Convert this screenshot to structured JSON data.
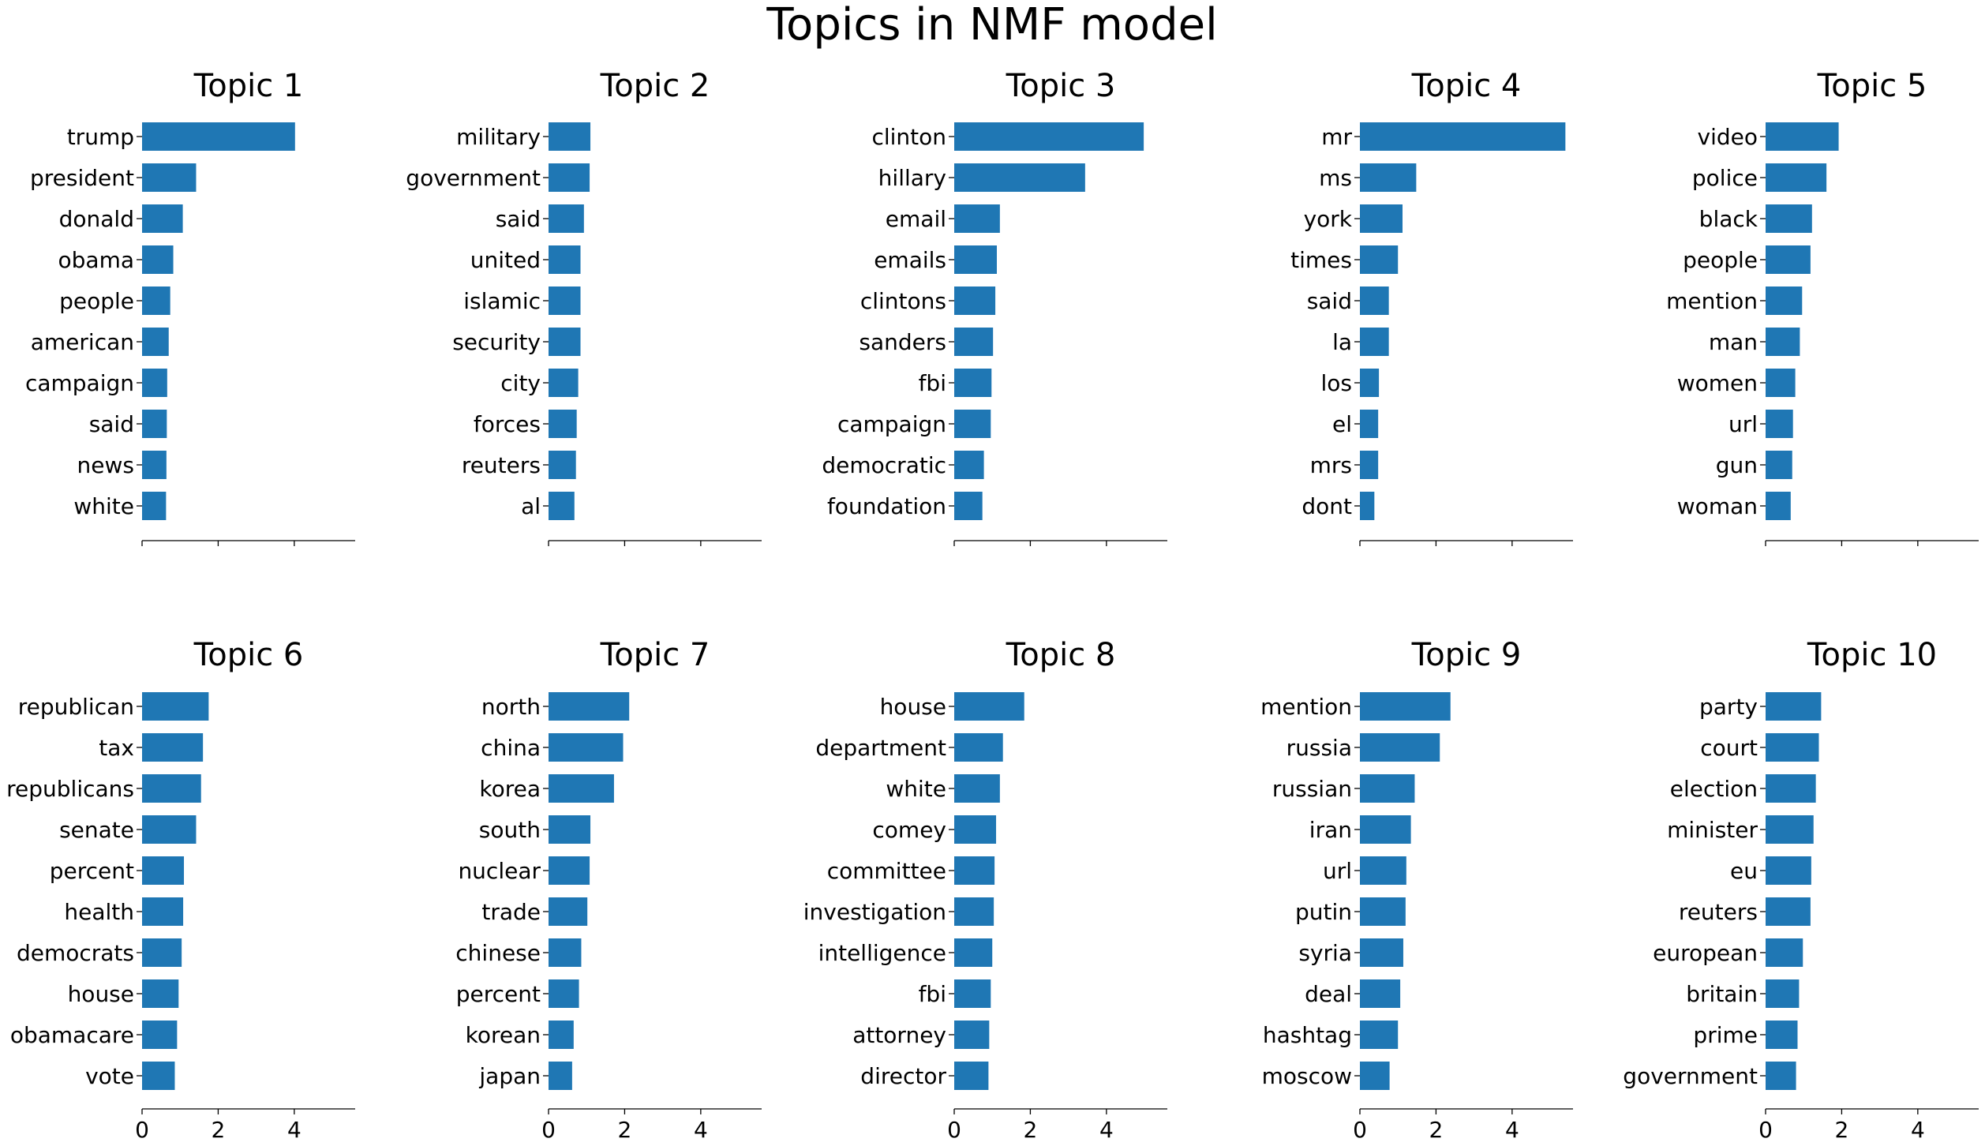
{
  "title": "Topics in NMF model",
  "bar_color": "#1f77b4",
  "chart_data": [
    {
      "type": "bar",
      "orientation": "horizontal",
      "title": "Topic 1",
      "xlim": [
        0,
        5.6
      ],
      "xticks": [
        0,
        2,
        4
      ],
      "categories": [
        "trump",
        "president",
        "donald",
        "obama",
        "people",
        "american",
        "campaign",
        "said",
        "news",
        "white"
      ],
      "values": [
        4.02,
        1.42,
        1.07,
        0.82,
        0.74,
        0.7,
        0.66,
        0.65,
        0.64,
        0.63
      ]
    },
    {
      "type": "bar",
      "orientation": "horizontal",
      "title": "Topic 2",
      "xlim": [
        0,
        5.6
      ],
      "xticks": [
        0,
        2,
        4
      ],
      "categories": [
        "military",
        "government",
        "said",
        "united",
        "islamic",
        "security",
        "city",
        "forces",
        "reuters",
        "al"
      ],
      "values": [
        1.1,
        1.08,
        0.93,
        0.84,
        0.84,
        0.84,
        0.78,
        0.74,
        0.72,
        0.68
      ]
    },
    {
      "type": "bar",
      "orientation": "horizontal",
      "title": "Topic 3",
      "xlim": [
        0,
        5.6
      ],
      "xticks": [
        0,
        2,
        4
      ],
      "categories": [
        "clinton",
        "hillary",
        "email",
        "emails",
        "clintons",
        "sanders",
        "fbi",
        "campaign",
        "democratic",
        "foundation"
      ],
      "values": [
        4.98,
        3.44,
        1.2,
        1.12,
        1.08,
        1.02,
        0.98,
        0.96,
        0.78,
        0.74
      ]
    },
    {
      "type": "bar",
      "orientation": "horizontal",
      "title": "Topic 4",
      "xlim": [
        0,
        5.6
      ],
      "xticks": [
        0,
        2,
        4
      ],
      "categories": [
        "mr",
        "ms",
        "york",
        "times",
        "said",
        "la",
        "los",
        "el",
        "mrs",
        "dont"
      ],
      "values": [
        5.4,
        1.48,
        1.12,
        1.0,
        0.76,
        0.76,
        0.5,
        0.48,
        0.48,
        0.38
      ]
    },
    {
      "type": "bar",
      "orientation": "horizontal",
      "title": "Topic 5",
      "xlim": [
        0,
        5.6
      ],
      "xticks": [
        0,
        2,
        4
      ],
      "categories": [
        "video",
        "police",
        "black",
        "people",
        "mention",
        "man",
        "women",
        "url",
        "gun",
        "woman"
      ],
      "values": [
        1.92,
        1.6,
        1.22,
        1.18,
        0.96,
        0.9,
        0.78,
        0.72,
        0.7,
        0.66
      ]
    },
    {
      "type": "bar",
      "orientation": "horizontal",
      "title": "Topic 6",
      "xlim": [
        0,
        5.6
      ],
      "xticks": [
        0,
        2,
        4
      ],
      "categories": [
        "republican",
        "tax",
        "republicans",
        "senate",
        "percent",
        "health",
        "democrats",
        "house",
        "obamacare",
        "vote"
      ],
      "values": [
        1.75,
        1.6,
        1.55,
        1.42,
        1.1,
        1.08,
        1.04,
        0.96,
        0.92,
        0.86
      ]
    },
    {
      "type": "bar",
      "orientation": "horizontal",
      "title": "Topic 7",
      "xlim": [
        0,
        5.6
      ],
      "xticks": [
        0,
        2,
        4
      ],
      "categories": [
        "north",
        "china",
        "korea",
        "south",
        "nuclear",
        "trade",
        "chinese",
        "percent",
        "korean",
        "japan"
      ],
      "values": [
        2.12,
        1.96,
        1.72,
        1.1,
        1.08,
        1.02,
        0.86,
        0.8,
        0.66,
        0.62
      ]
    },
    {
      "type": "bar",
      "orientation": "horizontal",
      "title": "Topic 8",
      "xlim": [
        0,
        5.6
      ],
      "xticks": [
        0,
        2,
        4
      ],
      "categories": [
        "house",
        "department",
        "white",
        "comey",
        "committee",
        "investigation",
        "intelligence",
        "fbi",
        "attorney",
        "director"
      ],
      "values": [
        1.84,
        1.28,
        1.2,
        1.1,
        1.06,
        1.04,
        1.0,
        0.96,
        0.92,
        0.9
      ]
    },
    {
      "type": "bar",
      "orientation": "horizontal",
      "title": "Topic 9",
      "xlim": [
        0,
        5.6
      ],
      "xticks": [
        0,
        2,
        4
      ],
      "categories": [
        "mention",
        "russia",
        "russian",
        "iran",
        "url",
        "putin",
        "syria",
        "deal",
        "hashtag",
        "moscow"
      ],
      "values": [
        2.38,
        2.1,
        1.44,
        1.34,
        1.22,
        1.2,
        1.14,
        1.06,
        1.0,
        0.78
      ]
    },
    {
      "type": "bar",
      "orientation": "horizontal",
      "title": "Topic 10",
      "xlim": [
        0,
        5.6
      ],
      "xticks": [
        0,
        2,
        4
      ],
      "categories": [
        "party",
        "court",
        "election",
        "minister",
        "eu",
        "reuters",
        "european",
        "britain",
        "prime",
        "government"
      ],
      "values": [
        1.46,
        1.4,
        1.32,
        1.26,
        1.2,
        1.18,
        0.98,
        0.88,
        0.84,
        0.8
      ]
    }
  ]
}
